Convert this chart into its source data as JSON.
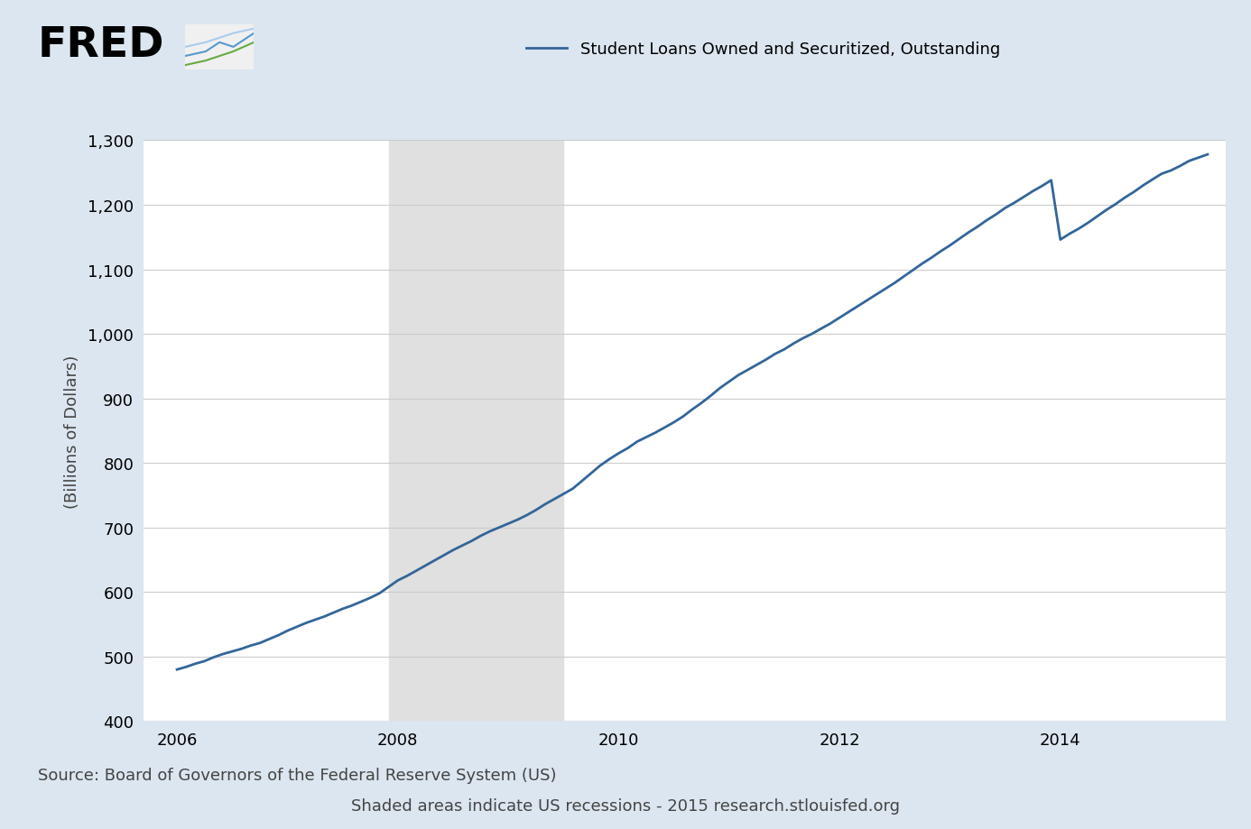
{
  "title": "Student Loans Owned and Securitized, Outstanding",
  "legend_label": "Student Loans Owned and Securitized, Outstanding",
  "ylabel": "(Billions of Dollars)",
  "background_color": "#dce6f0",
  "plot_bg_color": "#ffffff",
  "line_color": "#336699",
  "line_width": 2.0,
  "recession_color": "#e0e0e0",
  "recession_start": 2007.917,
  "recession_end": 2009.5,
  "ylim": [
    400,
    1300
  ],
  "yticks": [
    400,
    500,
    600,
    700,
    800,
    900,
    1000,
    1100,
    1200,
    1300
  ],
  "xlim_start": 2005.7,
  "xlim_end": 2015.5,
  "xticks": [
    2006,
    2008,
    2010,
    2012,
    2014
  ],
  "source_text": "Source: Board of Governors of the Federal Reserve System (US)",
  "footnote_text": "Shaded areas indicate US recessions - 2015 research.stlouisfed.org",
  "fred_text": "FRED",
  "title_fontsize": 15,
  "axis_fontsize": 13,
  "tick_fontsize": 13,
  "source_fontsize": 13,
  "data_x": [
    2006.0,
    2006.083,
    2006.167,
    2006.25,
    2006.333,
    2006.417,
    2006.5,
    2006.583,
    2006.667,
    2006.75,
    2006.833,
    2006.917,
    2007.0,
    2007.083,
    2007.167,
    2007.25,
    2007.333,
    2007.417,
    2007.5,
    2007.583,
    2007.667,
    2007.75,
    2007.833,
    2007.917,
    2008.0,
    2008.083,
    2008.167,
    2008.25,
    2008.333,
    2008.417,
    2008.5,
    2008.583,
    2008.667,
    2008.75,
    2008.833,
    2008.917,
    2009.0,
    2009.083,
    2009.167,
    2009.25,
    2009.333,
    2009.417,
    2009.5,
    2009.583,
    2009.667,
    2009.75,
    2009.833,
    2009.917,
    2010.0,
    2010.083,
    2010.167,
    2010.25,
    2010.333,
    2010.417,
    2010.5,
    2010.583,
    2010.667,
    2010.75,
    2010.833,
    2010.917,
    2011.0,
    2011.083,
    2011.167,
    2011.25,
    2011.333,
    2011.417,
    2011.5,
    2011.583,
    2011.667,
    2011.75,
    2011.833,
    2011.917,
    2012.0,
    2012.083,
    2012.167,
    2012.25,
    2012.333,
    2012.417,
    2012.5,
    2012.583,
    2012.667,
    2012.75,
    2012.833,
    2012.917,
    2013.0,
    2013.083,
    2013.167,
    2013.25,
    2013.333,
    2013.417,
    2013.5,
    2013.583,
    2013.667,
    2013.75,
    2013.833,
    2013.917,
    2014.0,
    2014.083,
    2014.167,
    2014.25,
    2014.333,
    2014.417,
    2014.5,
    2014.583,
    2014.667,
    2014.75,
    2014.833,
    2014.917,
    2015.0,
    2015.083,
    2015.167,
    2015.25,
    2015.333
  ],
  "data_y": [
    480,
    484,
    489,
    493,
    499,
    504,
    508,
    512,
    517,
    521,
    527,
    533,
    540,
    546,
    552,
    557,
    562,
    568,
    574,
    579,
    585,
    591,
    598,
    608,
    618,
    625,
    633,
    641,
    649,
    657,
    665,
    672,
    679,
    687,
    694,
    700,
    706,
    712,
    719,
    727,
    736,
    744,
    752,
    760,
    772,
    784,
    796,
    806,
    815,
    823,
    833,
    840,
    847,
    855,
    863,
    872,
    883,
    893,
    904,
    916,
    926,
    936,
    944,
    952,
    960,
    969,
    976,
    985,
    993,
    1000,
    1008,
    1016,
    1025,
    1034,
    1043,
    1052,
    1061,
    1070,
    1079,
    1089,
    1099,
    1109,
    1118,
    1128,
    1137,
    1147,
    1157,
    1166,
    1176,
    1185,
    1195,
    1203,
    1212,
    1221,
    1229,
    1238,
    1146,
    1155,
    1163,
    1172,
    1182,
    1192,
    1201,
    1211,
    1220,
    1230,
    1239,
    1248,
    1253,
    1260,
    1268,
    1273,
    1278
  ]
}
